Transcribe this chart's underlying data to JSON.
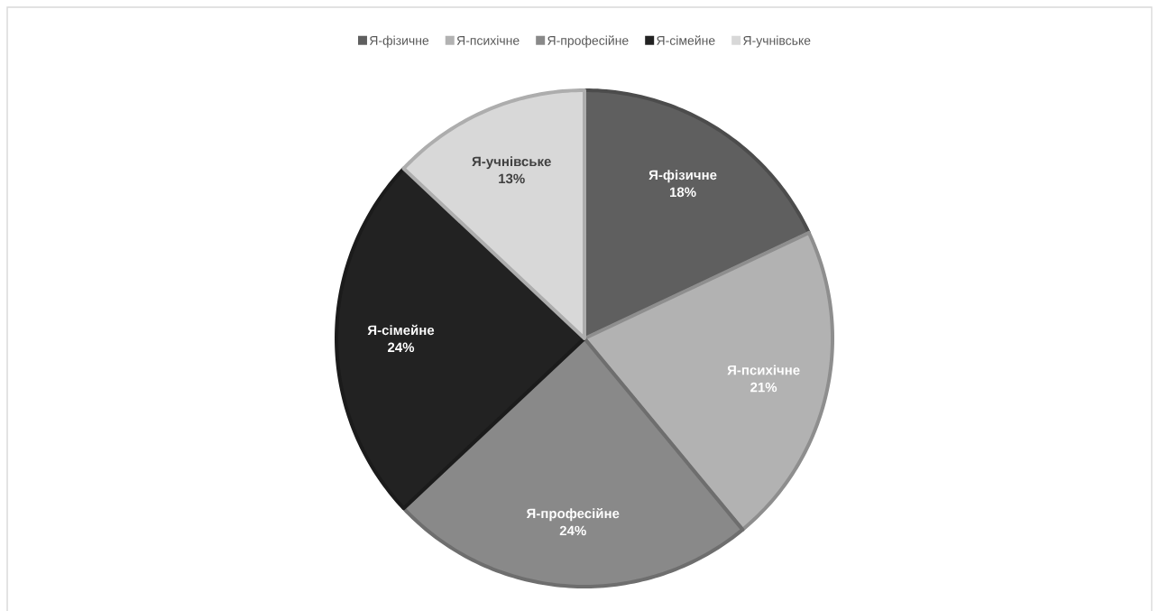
{
  "chart_data": {
    "type": "pie",
    "categories": [
      "Я-фізичне",
      "Я-психічне",
      "Я-професійне",
      "Я-сімейне",
      "Я-учнівське"
    ],
    "values": [
      18,
      21,
      24,
      24,
      13
    ],
    "value_labels": [
      "18%",
      "21%",
      "24%",
      "24%",
      "13%"
    ],
    "colors": [
      "#5f5f5f",
      "#b2b2b2",
      "#898989",
      "#222222",
      "#d8d8d8"
    ],
    "legend": "top"
  }
}
